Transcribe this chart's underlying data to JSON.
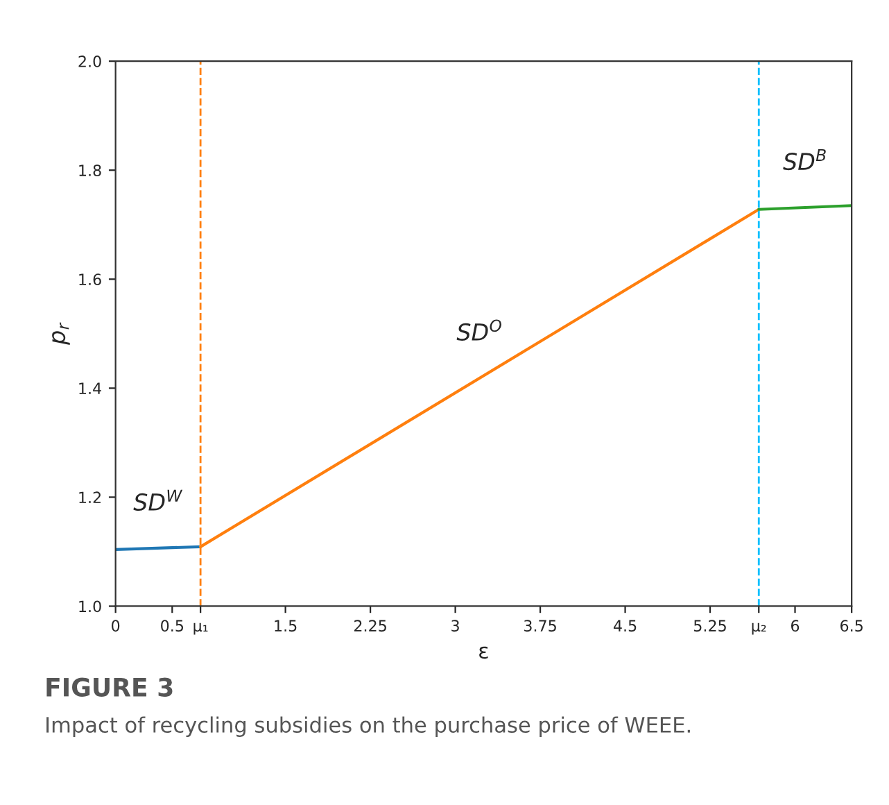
{
  "chart_data": {
    "type": "line",
    "xlabel": "ε",
    "ylabel": "p$_{r}$",
    "xlim": [
      0,
      6.5
    ],
    "ylim": [
      1.0,
      2.0
    ],
    "xticks": [
      0,
      0.5,
      {
        "value": 0.75,
        "label": "μ₁"
      },
      1.5,
      2.25,
      3,
      3.75,
      4.5,
      5.25,
      {
        "value": 5.68,
        "label": "μ₂"
      },
      6,
      6.5
    ],
    "yticks": [
      {
        "value": 1.0,
        "label": "1.0"
      },
      1.2,
      1.4,
      1.6,
      1.8,
      {
        "value": 2.0,
        "label": "2.0"
      }
    ],
    "series": [
      {
        "name": "SD$^{W}$",
        "color": "#1f77b4",
        "x": [
          0,
          0.75
        ],
        "values": [
          1.104,
          1.109
        ]
      },
      {
        "name": "SD$^{O}$",
        "color": "#ff7f0e",
        "x": [
          0.75,
          5.68
        ],
        "values": [
          1.109,
          1.728
        ]
      },
      {
        "name": "SD$^{B}$",
        "color": "#2ca02c",
        "x": [
          5.68,
          6.5
        ],
        "values": [
          1.728,
          1.735
        ]
      }
    ],
    "ref_lines": [
      {
        "axis": "x",
        "value": 0.75,
        "color": "#ff7f0e",
        "line_style": "dashed"
      },
      {
        "axis": "x",
        "value": 5.68,
        "color": "#00bfff",
        "line_style": "dashed"
      }
    ],
    "line_style": "solid",
    "marker": "none",
    "grid": false,
    "legend": false,
    "annotations": [
      "FIGURE 3",
      "Impact of recycling subsidies on the purchase price of WEEE."
    ]
  }
}
